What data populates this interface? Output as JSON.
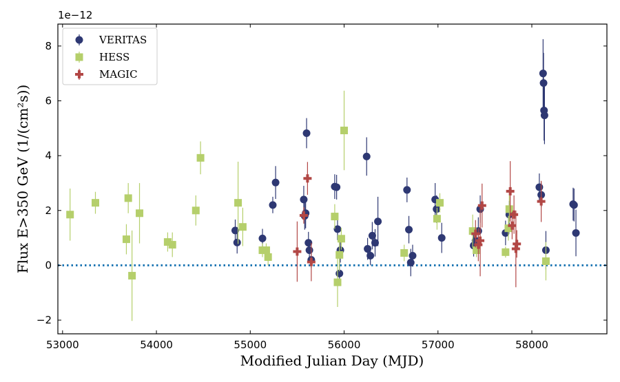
{
  "chart_data": {
    "type": "scatter",
    "xlabel": "Modified Julian Day (MJD)",
    "ylabel": "Flux E>350 GeV (1/(cm²s))",
    "offset_text": "1e−12",
    "xlim": [
      52950,
      58800
    ],
    "ylim": [
      -2.5,
      8.8
    ],
    "x_ticks": [
      53000,
      54000,
      55000,
      56000,
      57000,
      58000
    ],
    "y_ticks": [
      -2,
      0,
      2,
      4,
      6,
      8
    ],
    "x_tick_labels": [
      "53000",
      "54000",
      "55000",
      "56000",
      "57000",
      "58000"
    ],
    "y_tick_labels": [
      "−2",
      "0",
      "2",
      "4",
      "6",
      "8"
    ],
    "grid": false,
    "legend_position": "top-left",
    "reference_line": {
      "y": 0,
      "style": "dotted",
      "color": "#1f77b4"
    },
    "series": [
      {
        "name": "VERITAS",
        "marker": "circle",
        "color": "#2e3873",
        "points": [
          {
            "x": 54840,
            "y": 1.27,
            "err": 0.4
          },
          {
            "x": 54860,
            "y": 0.83,
            "err": 0.4
          },
          {
            "x": 55130,
            "y": 0.98,
            "err": 0.35
          },
          {
            "x": 55240,
            "y": 2.2,
            "err": 0.3
          },
          {
            "x": 55270,
            "y": 3.02,
            "err": 0.6
          },
          {
            "x": 55570,
            "y": 2.4,
            "err": 0.5
          },
          {
            "x": 55580,
            "y": 1.8,
            "err": 0.5
          },
          {
            "x": 55590,
            "y": 1.9,
            "err": 0.55
          },
          {
            "x": 55600,
            "y": 4.82,
            "err": 0.55
          },
          {
            "x": 55620,
            "y": 0.82,
            "err": 0.4
          },
          {
            "x": 55630,
            "y": 0.55,
            "err": 0.35
          },
          {
            "x": 55650,
            "y": 0.2,
            "err": 0.3
          },
          {
            "x": 55900,
            "y": 2.87,
            "err": 0.45
          },
          {
            "x": 55920,
            "y": 2.85,
            "err": 0.45
          },
          {
            "x": 55930,
            "y": 1.32,
            "err": 0.4
          },
          {
            "x": 55950,
            "y": -0.3,
            "err": 0.4
          },
          {
            "x": 55960,
            "y": 0.55,
            "err": 0.45
          },
          {
            "x": 56240,
            "y": 3.97,
            "err": 0.7
          },
          {
            "x": 56250,
            "y": 0.6,
            "err": 0.4
          },
          {
            "x": 56280,
            "y": 0.35,
            "err": 0.35
          },
          {
            "x": 56300,
            "y": 1.08,
            "err": 0.5
          },
          {
            "x": 56330,
            "y": 0.82,
            "err": 0.5
          },
          {
            "x": 56360,
            "y": 1.6,
            "err": 0.9
          },
          {
            "x": 56670,
            "y": 2.75,
            "err": 0.45
          },
          {
            "x": 56690,
            "y": 1.3,
            "err": 0.5
          },
          {
            "x": 56710,
            "y": 0.1,
            "err": 0.5
          },
          {
            "x": 56730,
            "y": 0.35,
            "err": 0.4
          },
          {
            "x": 56970,
            "y": 2.4,
            "err": 0.6
          },
          {
            "x": 56985,
            "y": 2.05,
            "err": 0.5
          },
          {
            "x": 57040,
            "y": 1.0,
            "err": 0.55
          },
          {
            "x": 57380,
            "y": 0.72,
            "err": 0.4
          },
          {
            "x": 57400,
            "y": 0.9,
            "err": 0.4
          },
          {
            "x": 57430,
            "y": 1.25,
            "err": 0.5
          },
          {
            "x": 57450,
            "y": 2.05,
            "err": 0.5
          },
          {
            "x": 57720,
            "y": 1.18,
            "err": 0.45
          },
          {
            "x": 57760,
            "y": 1.85,
            "err": 0.5
          },
          {
            "x": 58080,
            "y": 2.85,
            "err": 0.5
          },
          {
            "x": 58100,
            "y": 2.57,
            "err": 0.45
          },
          {
            "x": 58120,
            "y": 7.0,
            "err": 1.25
          },
          {
            "x": 58125,
            "y": 6.65,
            "err": 1.1
          },
          {
            "x": 58130,
            "y": 5.65,
            "err": 1.1
          },
          {
            "x": 58135,
            "y": 5.47,
            "err": 1.05
          },
          {
            "x": 58150,
            "y": 0.55,
            "err": 0.7
          },
          {
            "x": 58440,
            "y": 2.23,
            "err": 0.6
          },
          {
            "x": 58450,
            "y": 2.2,
            "err": 0.6
          },
          {
            "x": 58470,
            "y": 1.18,
            "err": 0.85
          }
        ]
      },
      {
        "name": "HESS",
        "marker": "square",
        "color": "#b5cf6b",
        "points": [
          {
            "x": 53080,
            "y": 1.85,
            "err": 0.95
          },
          {
            "x": 53350,
            "y": 2.28,
            "err": 0.4
          },
          {
            "x": 53680,
            "y": 0.95,
            "err": 0.55
          },
          {
            "x": 53700,
            "y": 2.45,
            "err": 0.55
          },
          {
            "x": 53740,
            "y": -0.38,
            "err": 1.65
          },
          {
            "x": 53820,
            "y": 1.9,
            "err": 1.1
          },
          {
            "x": 54120,
            "y": 0.85,
            "err": 0.35
          },
          {
            "x": 54170,
            "y": 0.75,
            "err": 0.45
          },
          {
            "x": 54420,
            "y": 2.0,
            "err": 0.55
          },
          {
            "x": 54470,
            "y": 3.92,
            "err": 0.6
          },
          {
            "x": 54870,
            "y": 2.28,
            "err": 1.5
          },
          {
            "x": 54920,
            "y": 1.4,
            "err": 0.7
          },
          {
            "x": 55130,
            "y": 0.55,
            "err": 0.25
          },
          {
            "x": 55170,
            "y": 0.55,
            "err": 0.25
          },
          {
            "x": 55190,
            "y": 0.3,
            "err": 0.3
          },
          {
            "x": 55900,
            "y": 1.78,
            "err": 0.45
          },
          {
            "x": 55930,
            "y": -0.62,
            "err": 0.9
          },
          {
            "x": 55950,
            "y": 0.38,
            "err": 0.6
          },
          {
            "x": 55970,
            "y": 0.97,
            "err": 0.4
          },
          {
            "x": 56000,
            "y": 4.92,
            "err": 1.45
          },
          {
            "x": 56640,
            "y": 0.45,
            "err": 0.3
          },
          {
            "x": 56990,
            "y": 1.7,
            "err": 0.4
          },
          {
            "x": 57020,
            "y": 2.28,
            "err": 0.35
          },
          {
            "x": 57370,
            "y": 1.25,
            "err": 0.6
          },
          {
            "x": 57410,
            "y": 0.55,
            "err": 0.25
          },
          {
            "x": 57720,
            "y": 0.48,
            "err": 0.2
          },
          {
            "x": 57750,
            "y": 1.35,
            "err": 0.45
          },
          {
            "x": 57760,
            "y": 2.05,
            "err": 0.5
          },
          {
            "x": 58150,
            "y": 0.15,
            "err": 0.7
          }
        ]
      },
      {
        "name": "MAGIC",
        "marker": "plus",
        "color": "#b24745",
        "points": [
          {
            "x": 55500,
            "y": 0.5,
            "err": 1.1
          },
          {
            "x": 55570,
            "y": 1.82,
            "err": 0.3
          },
          {
            "x": 55610,
            "y": 3.17,
            "err": 0.6
          },
          {
            "x": 55650,
            "y": 0.12,
            "err": 0.7
          },
          {
            "x": 57400,
            "y": 1.15,
            "err": 0.5
          },
          {
            "x": 57430,
            "y": 0.75,
            "err": 0.6
          },
          {
            "x": 57450,
            "y": 0.9,
            "err": 1.3
          },
          {
            "x": 57470,
            "y": 2.18,
            "err": 0.8
          },
          {
            "x": 57770,
            "y": 2.7,
            "err": 1.1
          },
          {
            "x": 57790,
            "y": 1.45,
            "err": 0.5
          },
          {
            "x": 57810,
            "y": 1.85,
            "err": 0.7
          },
          {
            "x": 57830,
            "y": 0.6,
            "err": 1.4
          },
          {
            "x": 57840,
            "y": 0.78,
            "err": 0.5
          },
          {
            "x": 58100,
            "y": 2.33,
            "err": 0.75
          }
        ]
      }
    ]
  }
}
